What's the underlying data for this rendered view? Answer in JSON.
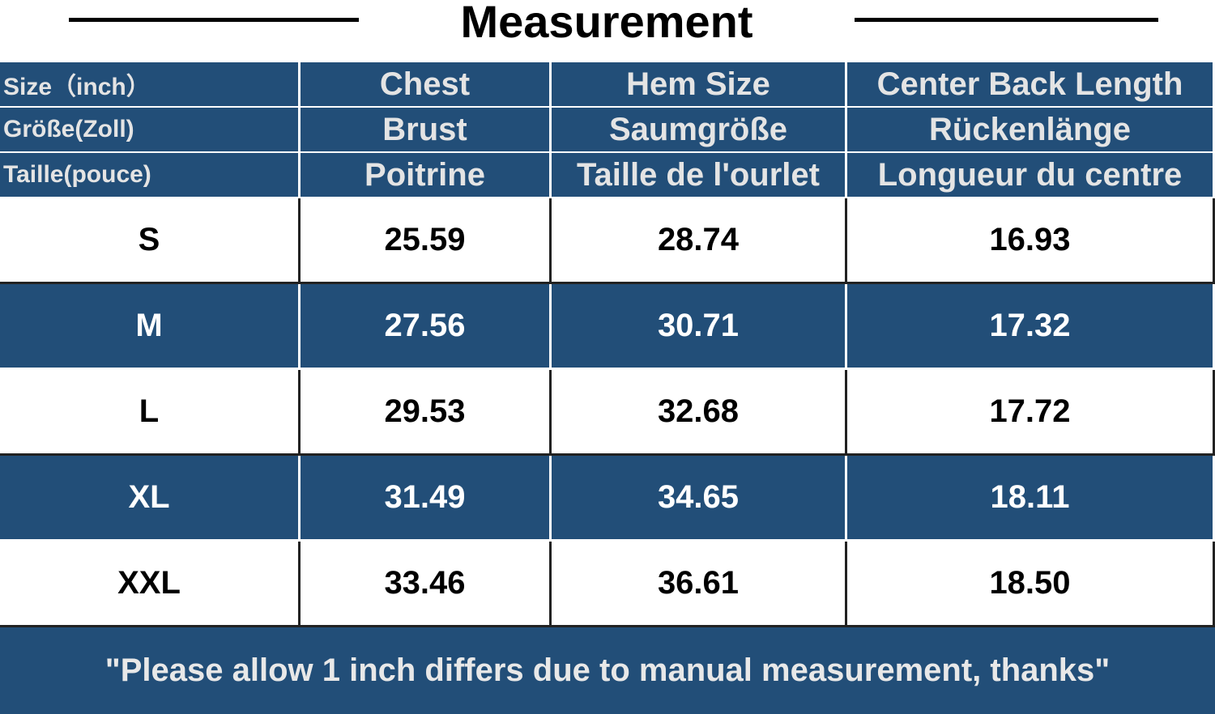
{
  "title": "Measurement",
  "table": {
    "header": [
      [
        "Size（inch）",
        "Chest",
        "Hem Size",
        "Center Back Length"
      ],
      [
        "Größe(Zoll)",
        "Brust",
        "Saumgröße",
        "Rückenlänge"
      ],
      [
        "Taille(pouce)",
        "Poitrine",
        "Taille de l'ourlet",
        "Longueur du centre"
      ]
    ],
    "rows": [
      [
        "S",
        "25.59",
        "28.74",
        "16.93"
      ],
      [
        "M",
        "27.56",
        "30.71",
        "17.32"
      ],
      [
        "L",
        "29.53",
        "32.68",
        "17.72"
      ],
      [
        "XL",
        "31.49",
        "34.65",
        "18.11"
      ],
      [
        "XXL",
        "33.46",
        "36.61",
        "18.50"
      ]
    ],
    "note": "\"Please allow 1 inch differs due to manual measurement, thanks\""
  }
}
